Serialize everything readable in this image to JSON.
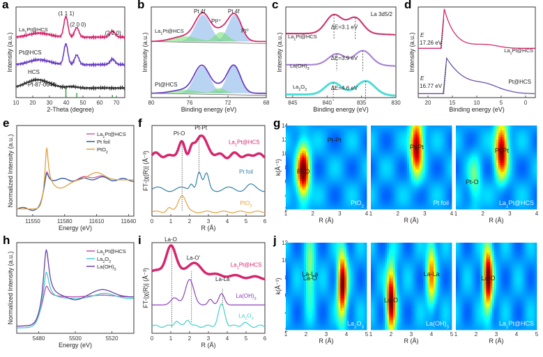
{
  "chart_data": [
    {
      "id": "a",
      "type": "line",
      "panel_label": "a",
      "xlabel": "2-Theta (degree)",
      "ylabel": "Intensity (a.u.)",
      "xlim": [
        10,
        75
      ],
      "xticks": [
        10,
        20,
        30,
        40,
        50,
        60,
        70
      ],
      "annotations": [
        "(1 1 1)",
        "(2 0 0)",
        "(2 2 0)"
      ],
      "reference": {
        "name": "Pt-87-0646",
        "color": "#2e9e3a",
        "lines": [
          {
            "x": 39.8,
            "h": 1.0
          },
          {
            "x": 46.3,
            "h": 0.45
          },
          {
            "x": 67.6,
            "h": 0.25
          }
        ]
      },
      "series": [
        {
          "name": "La1Pt@HCS",
          "color": "#d6266e",
          "offset": 2.2,
          "peaks": [
            [
              24,
              0.15,
              6
            ],
            [
              39.8,
              0.75,
              1.2
            ],
            [
              46.3,
              0.35,
              1.3
            ],
            [
              67.7,
              0.22,
              1.5
            ]
          ]
        },
        {
          "name": "Pt@HCS",
          "color": "#6a3fc4",
          "offset": 1.2,
          "peaks": [
            [
              24,
              0.18,
              6
            ],
            [
              39.8,
              0.75,
              1.2
            ],
            [
              46.3,
              0.35,
              1.3
            ],
            [
              67.7,
              0.2,
              1.5
            ]
          ]
        },
        {
          "name": "HCS",
          "color": "#333333",
          "offset": 0.35,
          "peaks": [
            [
              23,
              0.3,
              7
            ],
            [
              43,
              0.05,
              3
            ]
          ]
        }
      ]
    },
    {
      "id": "b",
      "type": "line",
      "panel_label": "b",
      "xlabel": "Binding energy (eV)",
      "ylabel": "Intensity (a.u.)",
      "xlim": [
        80,
        68
      ],
      "xticks": [
        80,
        76,
        72,
        68
      ],
      "annotations": [
        "Pt 4f5/2",
        "Pt 4f7/2",
        "Pt2+",
        "Pt0"
      ],
      "series": [
        {
          "name": "La1Pt@HCS",
          "color": "#d6266e",
          "offset": 1.3,
          "peaks": [
            [
              74.6,
              0.62,
              0.8
            ],
            [
              71.3,
              0.62,
              0.7
            ],
            [
              76.5,
              0.12,
              1.3
            ],
            [
              72.7,
              0.22,
              0.7
            ]
          ]
        },
        {
          "name": "Pt@HCS",
          "color": "#6a3fc4",
          "offset": 0.1,
          "peaks": [
            [
              74.7,
              0.62,
              0.8
            ],
            [
              71.4,
              0.65,
              0.7
            ],
            [
              76.5,
              0.08,
              1.3
            ],
            [
              72.9,
              0.12,
              0.6
            ]
          ]
        }
      ]
    },
    {
      "id": "c",
      "type": "line",
      "panel_label": "c",
      "xlabel": "Binding energy (eV)",
      "ylabel": "Intensity (a.u.)",
      "xlim": [
        846,
        830
      ],
      "xticks": [
        845,
        840,
        835,
        830
      ],
      "title": "La 3d5/2",
      "series": [
        {
          "name": "La1Pt@HCS",
          "color": "#c2185b",
          "offset": 2.0,
          "delta_e": "ΔE=3.1 eV",
          "peaks": [
            [
              839.0,
              0.6,
              1.2
            ],
            [
              835.9,
              0.5,
              1.1
            ]
          ]
        },
        {
          "name": "La(OH)3",
          "color": "#9b6fcf",
          "offset": 1.0,
          "delta_e": "ΔE=3.9 eV",
          "peaks": [
            [
              838.6,
              0.35,
              1.2
            ],
            [
              834.8,
              0.45,
              1.2
            ]
          ]
        },
        {
          "name": "La2O3",
          "color": "#2ed6cf",
          "offset": 0.05,
          "delta_e": "ΔE=4.6 eV",
          "peaks": [
            [
              839.1,
              0.38,
              1.2
            ],
            [
              834.4,
              0.43,
              1.3
            ]
          ]
        }
      ]
    },
    {
      "id": "d",
      "type": "line",
      "panel_label": "d",
      "xlabel": "Binding energy (eV)",
      "ylabel": "Intensity (a.u.)",
      "xlim": [
        22,
        -2
      ],
      "xticks": [
        20,
        15,
        10,
        5,
        0
      ],
      "annotations": [
        "E cutoff 17.26 eV",
        "E cutoff 16.77 eV"
      ],
      "series": [
        {
          "name": "La1Pt@HCS",
          "color": "#d6266e",
          "cutoff": 17.26,
          "offset": 1.25
        },
        {
          "name": "Pt@HCS",
          "color": "#6a4fa8",
          "cutoff": 16.77,
          "offset": 0.1
        }
      ]
    },
    {
      "id": "e",
      "type": "line",
      "panel_label": "e",
      "xlabel": "Energy (eV)",
      "ylabel": "Normalized Intensity (a.u.)",
      "xlim": [
        11535,
        11645
      ],
      "xticks": [
        11550,
        11580,
        11610,
        11640
      ],
      "legend": "top-right",
      "series": [
        {
          "name": "La1Pt@HCS",
          "color": "#d45a9a",
          "white_line": 1.35
        },
        {
          "name": "Pt foil",
          "color": "#2b5fa8",
          "white_line": 1.3
        },
        {
          "name": "PtO2",
          "color": "#e0a040",
          "white_line": 2.2
        }
      ]
    },
    {
      "id": "f",
      "type": "line",
      "panel_label": "f",
      "xlabel": "R (Å)",
      "ylabel": "FT-|χ(R)| (Å⁻³)",
      "xlim": [
        0,
        6
      ],
      "xticks": [
        0,
        1,
        2,
        3,
        4,
        5,
        6
      ],
      "annotations": [
        "Pt-O",
        "Pt-Pt"
      ],
      "series": [
        {
          "name": "La1Pt@HCS",
          "color": "#d6266e",
          "peaks": [
            [
              1.6,
              0.5
            ],
            [
              2.6,
              1.0
            ]
          ]
        },
        {
          "name": "Pt foil",
          "color": "#2f7fa8",
          "peaks": [
            [
              2.1,
              0.3
            ],
            [
              2.5,
              0.7
            ],
            [
              2.9,
              0.55
            ]
          ]
        },
        {
          "name": "PtO2",
          "color": "#e0a040",
          "peaks": [
            [
              1.6,
              0.6
            ]
          ]
        }
      ]
    },
    {
      "id": "g",
      "type": "heatmap",
      "panel_label": "g",
      "xlabel": "R (Å)",
      "ylabel": "k(Å⁻¹)",
      "xlim": [
        1,
        4
      ],
      "ylim": [
        2,
        14
      ],
      "xticks": [
        1,
        2,
        3,
        4
      ],
      "yticks": [
        2,
        4,
        6,
        8,
        10,
        12,
        14
      ],
      "maps": [
        {
          "name": "PtO2",
          "labels": [
            "Pt-O",
            "Pt-Pt"
          ],
          "hotspots": [
            [
              1.65,
              7.5,
              1.0
            ]
          ]
        },
        {
          "name": "Pt foil",
          "labels": [
            "Pt-Pt"
          ],
          "hotspots": [
            [
              2.7,
              11,
              1.0
            ]
          ]
        },
        {
          "name": "La1Pt@HCS",
          "labels": [
            "Pt-Pt",
            "Pt-O"
          ],
          "hotspots": [
            [
              2.7,
              10.5,
              1.0
            ],
            [
              1.7,
              6,
              0.25
            ]
          ]
        }
      ]
    },
    {
      "id": "h",
      "type": "line",
      "panel_label": "h",
      "xlabel": "Energy (eV)",
      "ylabel": "Normalized Intensity (a.u.)",
      "xlim": [
        5468,
        5532
      ],
      "xticks": [
        5480,
        5500,
        5520
      ],
      "legend": "top-right",
      "series": [
        {
          "name": "La1Pt@HCS",
          "color": "#c04fb0",
          "white_line": 1.45
        },
        {
          "name": "La2O3",
          "color": "#40d0c8",
          "white_line": 1.95
        },
        {
          "name": "La(OH)3",
          "color": "#6a3fa8",
          "white_line": 2.6
        }
      ]
    },
    {
      "id": "i",
      "type": "line",
      "panel_label": "i",
      "xlabel": "R (Å)",
      "ylabel": "FT-|χ(R)| (Å⁻³)",
      "xlim": [
        0,
        6
      ],
      "xticks": [
        0,
        1,
        2,
        3,
        4,
        5,
        6
      ],
      "annotations": [
        "La-O",
        "La-O'",
        "La-La"
      ],
      "series": [
        {
          "name": "La1Pt@HCS",
          "color": "#d6266e"
        },
        {
          "name": "La(OH)3",
          "color": "#8a3fb8"
        },
        {
          "name": "La2O3",
          "color": "#40d0c8"
        }
      ]
    },
    {
      "id": "j",
      "type": "heatmap",
      "panel_label": "j",
      "xlabel": "R (Å)",
      "ylabel": "k(Å⁻¹)",
      "xlim": [
        1,
        5
      ],
      "ylim": [
        2,
        12
      ],
      "xticks": [
        1,
        2,
        3,
        4,
        5
      ],
      "yticks": [
        2,
        4,
        6,
        8,
        10,
        12
      ],
      "maps": [
        {
          "name": "La2O3",
          "labels": [
            "La-O",
            "La-La"
          ],
          "hotspots": [
            [
              3.8,
              7.2,
              1.0
            ],
            [
              2.2,
              8.5,
              0.35
            ]
          ]
        },
        {
          "name": "La(OH)3",
          "labels": [
            "La-O",
            "La-La"
          ],
          "hotspots": [
            [
              2.0,
              5.5,
              1.0
            ],
            [
              4.0,
              8.5,
              0.6
            ]
          ]
        },
        {
          "name": "La1Pt@HCS",
          "labels": [
            "La-O"
          ],
          "hotspots": [
            [
              2.6,
              8.0,
              1.0
            ]
          ]
        }
      ]
    }
  ]
}
